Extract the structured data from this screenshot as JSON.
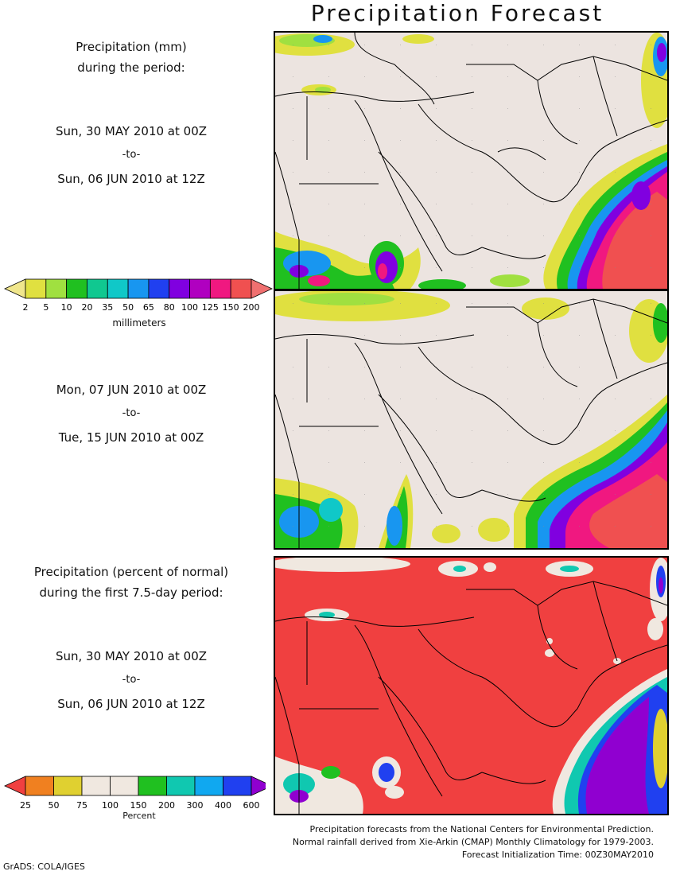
{
  "title": "Precipitation Forecast",
  "panel1": {
    "heading_line1": "Precipitation (mm)",
    "heading_line2": "during the period:",
    "start": "Sun, 30 MAY 2010 at 00Z",
    "to": "-to-",
    "end": "Sun, 06 JUN 2010 at 12Z"
  },
  "panel2": {
    "start": "Mon, 07 JUN 2010 at 00Z",
    "to": "-to-",
    "end": "Tue, 15 JUN 2010 at 00Z"
  },
  "panel3": {
    "heading_line1": "Precipitation (percent of normal)",
    "heading_line2": "during the first 7.5-day period:",
    "start": "Sun, 30 MAY 2010 at 00Z",
    "to": "-to-",
    "end": "Sun, 06 JUN 2010 at 12Z"
  },
  "mm_legend": {
    "unit": "millimeters",
    "ticks": [
      "2",
      "5",
      "10",
      "20",
      "35",
      "50",
      "65",
      "80",
      "100",
      "125",
      "150",
      "200"
    ],
    "colors": [
      "#f0e68c",
      "#e0e040",
      "#a0e040",
      "#20c020",
      "#10c890",
      "#10c8c8",
      "#1896f0",
      "#2040f0",
      "#8000e0",
      "#b000c0",
      "#f01880",
      "#f05050",
      "#f07070"
    ]
  },
  "pct_legend": {
    "unit": "Percent",
    "ticks": [
      "25",
      "50",
      "75",
      "100",
      "150",
      "200",
      "300",
      "400",
      "600"
    ],
    "colors": [
      "#f04040",
      "#f08020",
      "#e0d030",
      "#f0e8e0",
      "#f0e8e0",
      "#20c020",
      "#10c8b0",
      "#10a8f0",
      "#2040f0",
      "#9000d0"
    ]
  },
  "credits": {
    "line1": "Precipitation forecasts from the National Centers for Environmental Prediction.",
    "line2": "Normal rainfall derived from Xie-Arkin (CMAP) Monthly Climatology for 1979-2003.",
    "line3": "Forecast Initialization Time: 00Z30MAY2010"
  },
  "footer": "GrADS: COLA/IGES"
}
